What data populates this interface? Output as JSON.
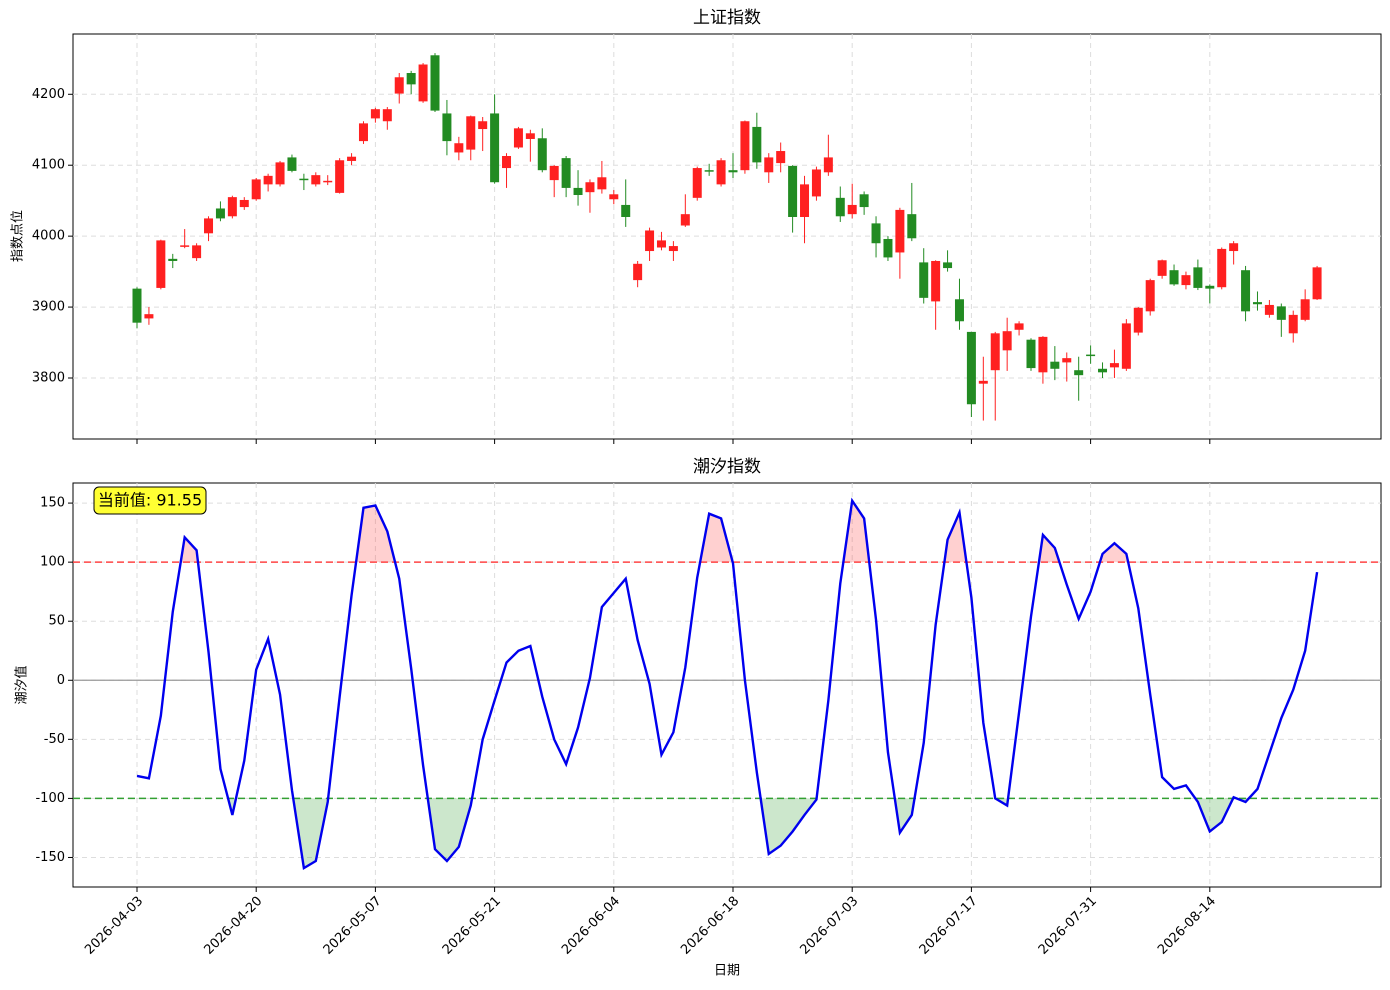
{
  "chart_data": [
    {
      "type": "candlestick",
      "title": "上证指数",
      "ylabel": "指数点位",
      "up_color": "#ff2020",
      "down_color": "#228b22",
      "grid": true,
      "ylim": [
        3714,
        4285
      ],
      "yticks": [
        3800,
        3900,
        4000,
        4100,
        4200
      ],
      "open": [
        3926,
        3884,
        3927,
        3968,
        3985,
        3969,
        4004,
        4039,
        4028,
        4041,
        4052,
        4073,
        4073,
        4111,
        4081,
        4073,
        4076,
        4061,
        4106,
        4134,
        4166,
        4162,
        4201,
        4230,
        4190,
        4255,
        4173,
        4118,
        4122,
        4151,
        4173,
        4096,
        4125,
        4137,
        4138,
        4079,
        4110,
        4068,
        4062,
        4066,
        4052,
        4044,
        3938,
        3979,
        3984,
        3979,
        4015,
        4054,
        4093,
        4073,
        4093,
        4093,
        4154,
        4090,
        4103,
        4099,
        4027,
        4056,
        4090,
        4054,
        4031,
        4059,
        4018,
        3996,
        3977,
        4031,
        3963,
        3908,
        3963,
        3911,
        3865,
        3792,
        3811,
        3839,
        3868,
        3854,
        3808,
        3823,
        3822,
        3811,
        3833,
        3813,
        3815,
        3813,
        3864,
        3894,
        3944,
        3952,
        3931,
        3956,
        3930,
        3928,
        3979,
        3952,
        3907,
        3889,
        3901,
        3863,
        3882,
        3911
      ],
      "high": [
        3928,
        3900,
        3995,
        3975,
        4010,
        3990,
        4028,
        4049,
        4057,
        4055,
        4082,
        4088,
        4106,
        4115,
        4088,
        4090,
        4086,
        4110,
        4117,
        4162,
        4181,
        4182,
        4230,
        4233,
        4244,
        4258,
        4192,
        4140,
        4170,
        4168,
        4200,
        4117,
        4154,
        4150,
        4152,
        4100,
        4113,
        4093,
        4080,
        4106,
        4065,
        4080,
        3965,
        4012,
        4006,
        3993,
        4059,
        4098,
        4102,
        4110,
        4117,
        4163,
        4174,
        4117,
        4132,
        4100,
        4085,
        4098,
        4143,
        4070,
        4074,
        4063,
        4028,
        4000,
        4040,
        4075,
        3983,
        3966,
        3980,
        3940,
        3865,
        3830,
        3865,
        3885,
        3880,
        3856,
        3859,
        3845,
        3836,
        3830,
        3846,
        3822,
        3840,
        3883,
        3900,
        3940,
        3967,
        3960,
        3950,
        3967,
        3932,
        3984,
        3993,
        3958,
        3922,
        3910,
        3905,
        3895,
        3925,
        3958
      ],
      "low": [
        3870,
        3875,
        3925,
        3955,
        3983,
        3965,
        3993,
        4021,
        4025,
        4037,
        4050,
        4063,
        4070,
        4090,
        4065,
        4070,
        4072,
        4060,
        4100,
        4130,
        4160,
        4150,
        4187,
        4200,
        4188,
        4175,
        4114,
        4107,
        4107,
        4120,
        4074,
        4068,
        4123,
        4105,
        4090,
        4055,
        4055,
        4043,
        4033,
        4060,
        4045,
        4013,
        3928,
        3965,
        3980,
        3965,
        4013,
        4050,
        4085,
        4070,
        4082,
        4088,
        4095,
        4075,
        4090,
        4005,
        3990,
        4050,
        4085,
        4020,
        4025,
        4030,
        3970,
        3965,
        3940,
        3993,
        3905,
        3868,
        3950,
        3868,
        3745,
        3740,
        3740,
        3810,
        3860,
        3810,
        3792,
        3797,
        3795,
        3768,
        3820,
        3800,
        3800,
        3810,
        3860,
        3888,
        3940,
        3930,
        3925,
        3924,
        3905,
        3925,
        3960,
        3880,
        3895,
        3885,
        3858,
        3850,
        3880,
        3910
      ],
      "close": [
        3878,
        3890,
        3994,
        3965,
        3987,
        3987,
        4025,
        4025,
        4055,
        4051,
        4080,
        4085,
        4104,
        4092,
        4079,
        4086,
        4078,
        4107,
        4112,
        4159,
        4179,
        4179,
        4224,
        4214,
        4242,
        4177,
        4134,
        4131,
        4169,
        4162,
        4076,
        4113,
        4152,
        4145,
        4093,
        4099,
        4068,
        4058,
        4076,
        4083,
        4059,
        4027,
        3961,
        4008,
        3994,
        3986,
        4031,
        4096,
        4091,
        4107,
        4090,
        4162,
        4104,
        4111,
        4120,
        4027,
        4073,
        4094,
        4111,
        4028,
        4044,
        4041,
        3990,
        3970,
        4037,
        3997,
        3913,
        3965,
        3955,
        3880,
        3763,
        3796,
        3863,
        3866,
        3877,
        3814,
        3858,
        3813,
        3828,
        3804,
        3832,
        3808,
        3821,
        3877,
        3899,
        3938,
        3966,
        3932,
        3945,
        3927,
        3926,
        3982,
        3990,
        3894,
        3904,
        3903,
        3882,
        3889,
        3911,
        3956
      ]
    },
    {
      "type": "line",
      "title": "潮汐指数",
      "ylabel": "潮汐值",
      "xlabel": "日期",
      "annotation": "当前值: 91.55",
      "grid": true,
      "upper_threshold": 100,
      "lower_threshold": -100,
      "upper_color": "#ff4444",
      "lower_color": "#33a033",
      "ylim": [
        -175,
        167
      ],
      "yticks": [
        -150,
        -100,
        -50,
        0,
        50,
        100,
        150
      ],
      "categories": [
        "2026-04-03",
        null,
        null,
        null,
        null,
        null,
        null,
        null,
        null,
        null,
        "2026-04-20",
        null,
        null,
        null,
        null,
        null,
        null,
        null,
        null,
        null,
        "2026-05-07",
        null,
        null,
        null,
        null,
        null,
        null,
        null,
        null,
        null,
        "2026-05-21",
        null,
        null,
        null,
        null,
        null,
        null,
        null,
        null,
        null,
        "2026-06-04",
        null,
        null,
        null,
        null,
        null,
        null,
        null,
        null,
        null,
        "2026-06-18",
        null,
        null,
        null,
        null,
        null,
        null,
        null,
        null,
        null,
        "2026-07-03",
        null,
        null,
        null,
        null,
        null,
        null,
        null,
        null,
        null,
        "2026-07-17",
        null,
        null,
        null,
        null,
        null,
        null,
        null,
        null,
        null,
        "2026-07-31",
        null,
        null,
        null,
        null,
        null,
        null,
        null,
        null,
        null,
        "2026-08-14",
        null,
        null,
        null,
        null,
        null,
        null,
        null,
        null,
        null
      ],
      "series": [
        {
          "color": "#0000ee",
          "values": [
            -81,
            -83,
            -30,
            58,
            121,
            110,
            24,
            -75,
            -114,
            -68,
            9,
            35,
            -12,
            -93,
            -159,
            -153,
            -103,
            -14,
            72,
            146,
            148,
            126,
            86,
            10,
            -72,
            -143,
            -153,
            -141,
            -106,
            -50,
            -17,
            15,
            25,
            29,
            -14,
            -50,
            -71,
            -40,
            2,
            62,
            74,
            86,
            34,
            -3,
            -63,
            -44,
            11,
            87,
            141,
            137,
            99,
            0,
            -78,
            -147,
            -140,
            -128,
            -114,
            -101,
            -17,
            82,
            152,
            137,
            51,
            -61,
            -129,
            -114,
            -53,
            47,
            119,
            142,
            70,
            -36,
            -100,
            -106,
            -27,
            54,
            123,
            112,
            81,
            52,
            75,
            107,
            116,
            107,
            61,
            -12,
            -82,
            -92,
            -89,
            -103,
            -128,
            -120,
            -99,
            -103,
            -92,
            -62,
            -32,
            -8,
            25,
            91.55
          ]
        }
      ]
    }
  ]
}
